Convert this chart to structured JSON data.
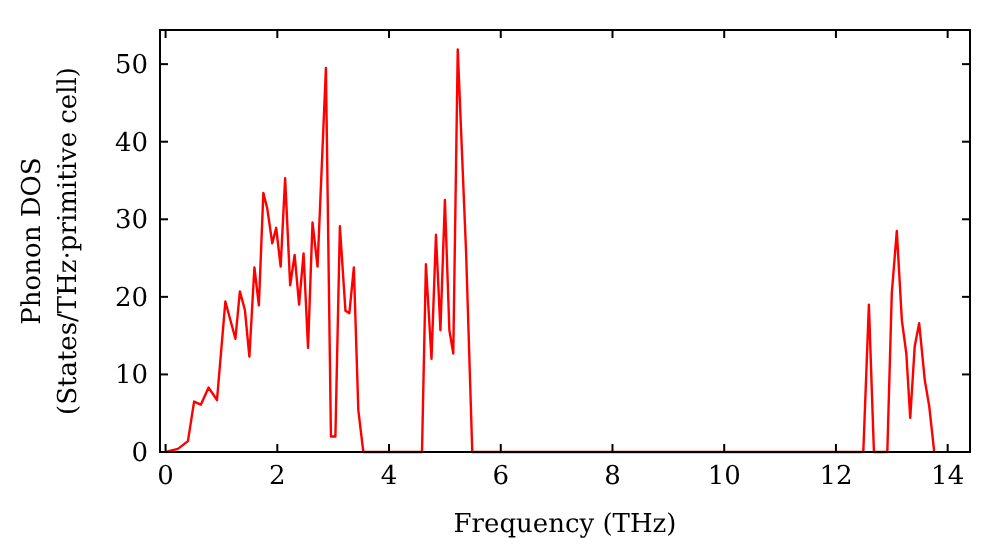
{
  "chart_data": {
    "type": "line",
    "xlabel": "Frequency (THz)",
    "ylabel": "Phonon DOS\n(States/THz·primitive cell)",
    "xlim": [
      -0.1,
      14.4
    ],
    "ylim": [
      0,
      54.4
    ],
    "xticks": [
      0,
      2,
      4,
      6,
      8,
      10,
      12,
      14
    ],
    "yticks": [
      0,
      10,
      20,
      30,
      40,
      50
    ],
    "grid": false,
    "series": [
      {
        "color": "#ff0000",
        "x": [
          0,
          0.22,
          0.4,
          0.51,
          0.63,
          0.77,
          0.92,
          1.07,
          1.25,
          1.33,
          1.42,
          1.5,
          1.59,
          1.67,
          1.75,
          1.82,
          1.91,
          1.98,
          2.06,
          2.14,
          2.23,
          2.31,
          2.39,
          2.47,
          2.55,
          2.63,
          2.72,
          2.87,
          2.96,
          3.04,
          3.12,
          3.22,
          3.29,
          3.37,
          3.45,
          3.54,
          4.59,
          4.66,
          4.76,
          4.84,
          4.92,
          5.0,
          5.08,
          5.15,
          5.23,
          5.38,
          5.49,
          12.49,
          12.59,
          12.68,
          12.92,
          13.0,
          13.09,
          13.18,
          13.26,
          13.33,
          13.41,
          13.49,
          13.59,
          13.67,
          13.76
        ],
        "values": [
          0,
          0.4,
          1.4,
          6.5,
          6.1,
          8.3,
          6.7,
          19.4,
          14.6,
          20.7,
          18.3,
          12.3,
          23.8,
          18.9,
          33.4,
          31.4,
          26.9,
          28.9,
          23.9,
          35.3,
          21.5,
          25.4,
          19.0,
          25.6,
          13.4,
          29.6,
          23.9,
          49.5,
          2.0,
          2.0,
          29.1,
          18.2,
          17.9,
          23.8,
          5.4,
          0,
          0,
          24.2,
          12.0,
          28.0,
          15.7,
          32.5,
          15.7,
          12.7,
          51.9,
          25.6,
          0,
          0,
          19.0,
          0,
          0,
          20.5,
          28.5,
          17.0,
          12.7,
          4.4,
          13.6,
          16.6,
          9.3,
          5.9,
          0
        ]
      }
    ]
  }
}
